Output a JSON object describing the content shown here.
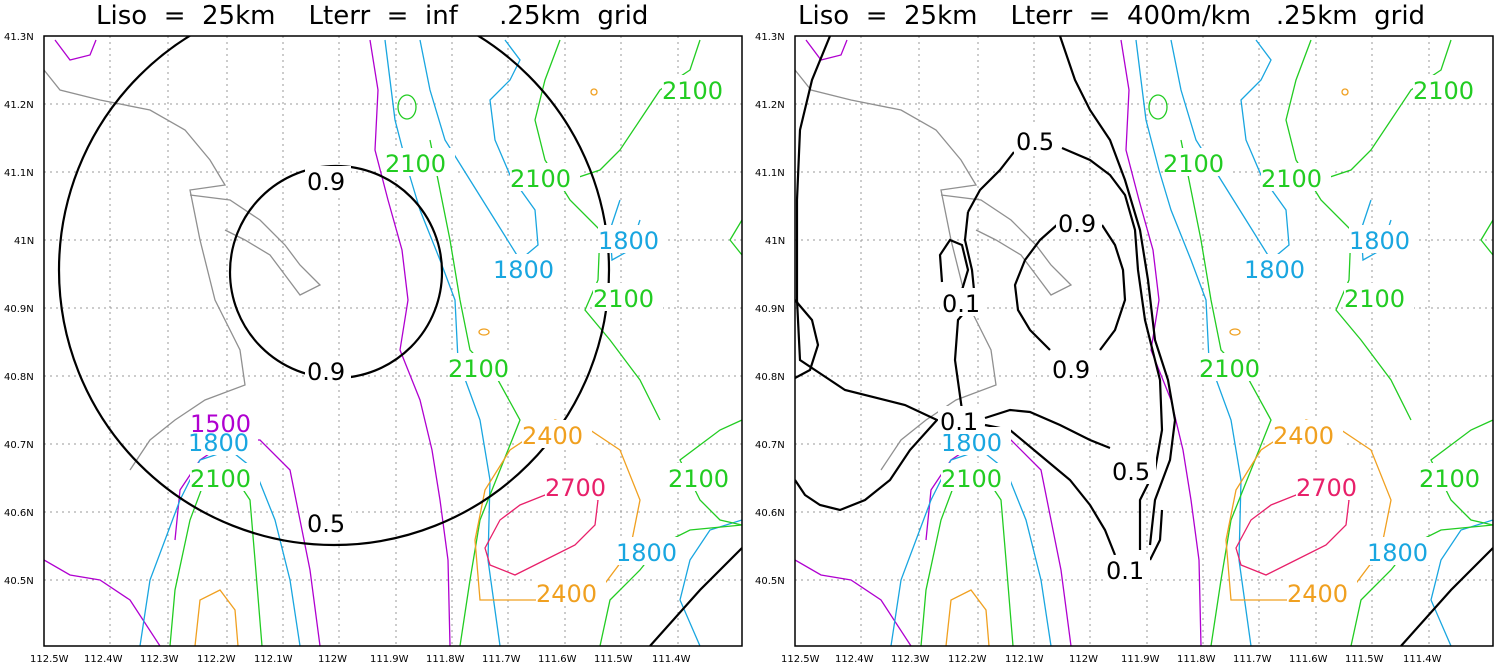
{
  "colors": {
    "terrain_1500": "#b000d0",
    "terrain_1800": "#19a6e0",
    "terrain_2100": "#22cc22",
    "terrain_2400": "#f0a020",
    "terrain_2700": "#e8206a",
    "weight": "#000000",
    "coastline": "#909090",
    "grid": "#999999"
  },
  "x_ticks": [
    "112.5W",
    "112.4W",
    "112.3W",
    "112.2W",
    "112.1W",
    "112W",
    "111.9W",
    "111.8W",
    "111.7W",
    "111.6W",
    "111.5W",
    "111.4W"
  ],
  "y_ticks": [
    "41.3N",
    "41.2N",
    "41.1N",
    "41N",
    "40.9N",
    "40.8N",
    "40.7N",
    "40.6N",
    "40.5N"
  ],
  "panels": [
    {
      "title": "Liso  =  25km    Lterr  =  inf     .25km  grid",
      "terrain_labels": [
        {
          "text": "2100",
          "level": 2100
        },
        {
          "text": "2100",
          "level": 2100
        },
        {
          "text": "2100",
          "level": 2100
        },
        {
          "text": "2100",
          "level": 2100
        },
        {
          "text": "2100",
          "level": 2100
        },
        {
          "text": "2100",
          "level": 2100
        },
        {
          "text": "2100",
          "level": 2100
        },
        {
          "text": "1800",
          "level": 1800
        },
        {
          "text": "1800",
          "level": 1800
        },
        {
          "text": "1800",
          "level": 1800
        },
        {
          "text": "1800",
          "level": 1800
        },
        {
          "text": "1500",
          "level": 1500
        },
        {
          "text": "2400",
          "level": 2400
        },
        {
          "text": "2400",
          "level": 2400
        },
        {
          "text": "2700",
          "level": 2700
        }
      ],
      "weight_labels": [
        "0.9",
        "0.9",
        "0.5"
      ]
    },
    {
      "title": "Liso  =  25km    Lterr  =  400m/km   .25km  grid",
      "terrain_labels": [
        {
          "text": "2100",
          "level": 2100
        },
        {
          "text": "2100",
          "level": 2100
        },
        {
          "text": "2100",
          "level": 2100
        },
        {
          "text": "2100",
          "level": 2100
        },
        {
          "text": "2100",
          "level": 2100
        },
        {
          "text": "2100",
          "level": 2100
        },
        {
          "text": "2100",
          "level": 2100
        },
        {
          "text": "1800",
          "level": 1800
        },
        {
          "text": "1800",
          "level": 1800
        },
        {
          "text": "1800",
          "level": 1800
        },
        {
          "text": "1800",
          "level": 1800
        },
        {
          "text": "2400",
          "level": 2400
        },
        {
          "text": "2400",
          "level": 2400
        },
        {
          "text": "2700",
          "level": 2700
        }
      ],
      "weight_labels": [
        "0.5",
        "0.9",
        "0.1",
        "0.9",
        "0.1",
        "0.5",
        "0.1"
      ]
    }
  ]
}
